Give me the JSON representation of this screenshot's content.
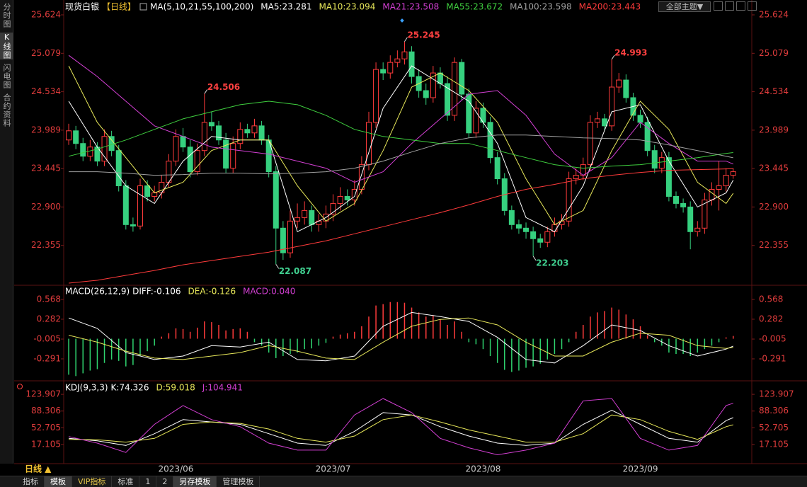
{
  "chart_data": [
    {
      "type": "candlestick",
      "title": "现货白银",
      "period": "【日线】",
      "indicator": "MA(5,10,21,55,100,200)",
      "up_color": "#ff3b3b",
      "down_color": "#36d07f",
      "xlim": [
        -0.7,
        95.6
      ],
      "ylim": [
        21.8,
        25.624
      ],
      "yticks": [
        25.624,
        25.079,
        24.534,
        23.989,
        23.445,
        {
          "value": 22.9,
          "label": "22.900"
        },
        22.355
      ],
      "xticks": [
        {
          "value": 15,
          "label": "2023/06"
        },
        {
          "value": 37,
          "label": "2023/07"
        },
        {
          "value": 58,
          "label": "2023/08"
        },
        {
          "value": 80,
          "label": "2023/09"
        }
      ],
      "open": [
        23.85,
        23.98,
        23.8,
        23.62,
        23.75,
        23.55,
        23.9,
        23.7,
        23.2,
        22.65,
        22.63,
        23.2,
        23.05,
        23.1,
        23.25,
        23.55,
        23.9,
        23.75,
        23.4,
        23.7,
        24.1,
        24.05,
        23.85,
        23.45,
        23.8,
        24.0,
        23.95,
        24.05,
        23.85,
        23.4,
        22.6,
        22.25,
        22.7,
        22.75,
        22.85,
        22.65,
        22.7,
        22.8,
        22.95,
        23.05,
        23.0,
        23.15,
        23.5,
        24.1,
        24.85,
        24.8,
        24.95,
        25.0,
        25.1,
        24.75,
        24.55,
        24.45,
        24.8,
        24.65,
        24.2,
        24.95,
        24.5,
        23.95,
        24.3,
        24.1,
        23.6,
        23.3,
        22.85,
        22.65,
        22.6,
        22.55,
        22.45,
        22.4,
        22.55,
        22.65,
        22.7,
        23.3,
        23.35,
        23.5,
        24.1,
        24.15,
        24.05,
        24.6,
        24.7,
        24.45,
        24.2,
        24.1,
        23.7,
        23.45,
        23.6,
        23.05,
        22.95,
        22.9,
        22.55,
        22.6,
        23.0,
        23.15,
        23.2,
        23.35
      ],
      "high": [
        24.08,
        24.05,
        23.88,
        23.85,
        23.82,
        24.0,
        23.98,
        23.78,
        23.28,
        22.75,
        23.3,
        23.28,
        23.2,
        23.35,
        23.65,
        24.0,
        24.02,
        23.85,
        23.8,
        24.506,
        24.25,
        24.12,
        23.95,
        23.9,
        24.1,
        24.08,
        24.15,
        24.12,
        23.92,
        23.48,
        22.7,
        22.85,
        22.95,
        22.98,
        22.92,
        22.8,
        22.92,
        23.08,
        23.18,
        23.15,
        23.28,
        23.62,
        24.25,
        24.95,
        24.95,
        25.05,
        25.12,
        25.245,
        25.18,
        24.85,
        24.65,
        24.9,
        24.88,
        24.75,
        25.02,
        25.0,
        24.58,
        24.4,
        24.38,
        24.18,
        23.68,
        23.38,
        22.92,
        22.72,
        22.68,
        22.62,
        22.52,
        22.62,
        22.75,
        22.8,
        23.4,
        23.45,
        23.6,
        24.2,
        24.25,
        24.22,
        24.993,
        24.8,
        24.78,
        24.52,
        24.28,
        24.18,
        23.78,
        23.68,
        23.68,
        23.12,
        23.02,
        22.98,
        22.7,
        23.1,
        23.25,
        23.55,
        23.45,
        23.45
      ],
      "low": [
        23.78,
        23.72,
        23.55,
        23.55,
        23.48,
        23.48,
        23.62,
        23.12,
        22.58,
        22.55,
        22.58,
        22.98,
        22.98,
        23.02,
        23.18,
        23.48,
        23.68,
        23.32,
        23.35,
        23.62,
        23.98,
        23.78,
        23.38,
        23.38,
        23.72,
        23.88,
        23.88,
        23.78,
        23.32,
        22.087,
        22.15,
        22.18,
        22.6,
        22.65,
        22.55,
        22.55,
        22.6,
        22.7,
        22.85,
        22.92,
        22.92,
        23.08,
        23.42,
        24.02,
        24.7,
        24.72,
        24.88,
        24.92,
        24.65,
        24.45,
        24.35,
        24.38,
        24.58,
        24.12,
        24.12,
        24.42,
        23.88,
        23.88,
        24.02,
        23.52,
        23.22,
        22.78,
        22.58,
        22.52,
        22.45,
        22.203,
        22.32,
        22.33,
        22.48,
        22.58,
        22.62,
        23.22,
        23.28,
        23.42,
        24.02,
        23.98,
        23.98,
        24.52,
        24.38,
        24.12,
        24.02,
        23.62,
        23.38,
        23.38,
        22.98,
        22.88,
        22.82,
        22.3,
        22.48,
        22.52,
        22.92,
        22.85,
        23.12,
        23.3
      ],
      "close": [
        23.98,
        23.8,
        23.62,
        23.75,
        23.55,
        23.9,
        23.7,
        23.2,
        22.65,
        22.63,
        23.2,
        23.05,
        23.1,
        23.25,
        23.55,
        23.9,
        23.75,
        23.4,
        23.7,
        24.1,
        24.05,
        23.85,
        23.45,
        23.8,
        24.0,
        23.95,
        24.05,
        23.85,
        23.4,
        22.6,
        22.25,
        22.7,
        22.75,
        22.85,
        22.65,
        22.7,
        22.8,
        22.95,
        23.05,
        23.0,
        23.15,
        23.5,
        24.1,
        24.85,
        24.8,
        24.95,
        25.0,
        25.1,
        24.75,
        24.55,
        24.45,
        24.8,
        24.65,
        24.2,
        24.95,
        24.5,
        23.95,
        24.3,
        24.1,
        23.6,
        23.3,
        22.85,
        22.65,
        22.6,
        22.55,
        22.45,
        22.4,
        22.55,
        22.65,
        22.7,
        23.3,
        23.35,
        23.5,
        24.1,
        24.15,
        24.05,
        24.6,
        24.7,
        24.45,
        24.2,
        24.1,
        23.7,
        23.45,
        23.6,
        23.05,
        22.95,
        22.9,
        22.55,
        22.6,
        23.0,
        23.15,
        23.2,
        23.35,
        23.4
      ],
      "line_x": [
        0,
        4,
        8,
        12,
        16,
        20,
        24,
        28,
        32,
        36,
        40,
        44,
        48,
        52,
        56,
        60,
        64,
        68,
        72,
        76,
        80,
        84,
        88,
        92,
        93
      ],
      "series": [
        {
          "name": "MA5:23.281",
          "color": "#ffffff",
          "values": [
            24.4,
            23.75,
            23.2,
            22.95,
            23.55,
            23.9,
            23.85,
            23.85,
            22.55,
            22.75,
            23.05,
            24.3,
            24.9,
            24.65,
            24.4,
            23.8,
            22.75,
            22.55,
            23.2,
            24.25,
            24.35,
            23.55,
            22.9,
            23.1,
            23.281
          ]
        },
        {
          "name": "MA10:23.094",
          "color": "#e8e85a",
          "values": [
            24.9,
            24.1,
            23.6,
            23.1,
            23.25,
            23.7,
            23.85,
            23.85,
            23.2,
            22.7,
            22.95,
            23.7,
            24.6,
            24.8,
            24.55,
            24.1,
            23.3,
            22.65,
            22.85,
            23.7,
            24.4,
            24.0,
            23.25,
            22.95,
            23.094
          ]
        },
        {
          "name": "MA21:23.508",
          "color": "#d23fd2",
          "values": [
            25.05,
            24.75,
            24.4,
            24.05,
            23.9,
            23.75,
            23.7,
            23.65,
            23.55,
            23.45,
            23.25,
            23.4,
            23.8,
            24.15,
            24.5,
            24.55,
            24.2,
            23.65,
            23.35,
            23.6,
            24.1,
            23.8,
            23.55,
            23.55,
            23.508
          ]
        },
        {
          "name": "MA55:23.672",
          "color": "#3fcf3f",
          "values": [
            23.62,
            23.72,
            23.85,
            24.0,
            24.15,
            24.25,
            24.35,
            24.4,
            24.35,
            24.2,
            24.0,
            23.9,
            23.85,
            23.8,
            23.8,
            23.7,
            23.6,
            23.5,
            23.45,
            23.48,
            23.5,
            23.55,
            23.6,
            23.66,
            23.672
          ]
        },
        {
          "name": "MA100:23.598",
          "color": "#a0a0a0",
          "values": [
            23.4,
            23.4,
            23.38,
            23.35,
            23.36,
            23.38,
            23.38,
            23.37,
            23.38,
            23.4,
            23.45,
            23.55,
            23.68,
            23.8,
            23.88,
            23.92,
            23.92,
            23.9,
            23.88,
            23.87,
            23.85,
            23.78,
            23.7,
            23.62,
            23.598
          ]
        },
        {
          "name": "MA200:23.443",
          "color": "#ff3b3b",
          "values": [
            21.82,
            21.86,
            21.93,
            22.0,
            22.08,
            22.14,
            22.2,
            22.26,
            22.34,
            22.42,
            22.52,
            22.62,
            22.72,
            22.82,
            22.93,
            23.05,
            23.15,
            23.22,
            23.3,
            23.35,
            23.39,
            23.42,
            23.43,
            23.44,
            23.443
          ]
        }
      ]
    },
    {
      "type": "macd",
      "title": "MACD(26,12,9)",
      "xlim": [
        -0.7,
        95.6
      ],
      "ylim": [
        -0.598,
        0.752
      ],
      "yticks": [
        0.568,
        0.282,
        -0.005,
        -0.291
      ],
      "histogram": {
        "name": "MACD:0.040",
        "color": "#d23fd2",
        "up_color": "#ff3b3b",
        "down_color": "#2fd46f",
        "values": [
          -0.52,
          -0.54,
          -0.5,
          -0.46,
          -0.44,
          -0.35,
          -0.3,
          -0.32,
          -0.4,
          -0.38,
          -0.25,
          -0.18,
          -0.1,
          0.03,
          0.08,
          0.15,
          0.14,
          0.1,
          0.16,
          0.25,
          0.24,
          0.2,
          0.12,
          0.14,
          0.15,
          0.1,
          -0.05,
          -0.1,
          -0.2,
          -0.28,
          -0.25,
          -0.22,
          -0.2,
          -0.15,
          -0.14,
          -0.1,
          -0.06,
          0.03,
          0.06,
          0.08,
          0.1,
          0.18,
          0.32,
          0.48,
          0.5,
          0.53,
          0.53,
          0.52,
          0.45,
          0.38,
          0.32,
          0.34,
          0.28,
          0.2,
          0.25,
          0.1,
          -0.05,
          -0.08,
          -0.15,
          -0.25,
          -0.35,
          -0.45,
          -0.48,
          -0.46,
          -0.42,
          -0.4,
          -0.36,
          -0.3,
          -0.22,
          -0.15,
          -0.05,
          0.1,
          0.2,
          0.32,
          0.38,
          0.4,
          0.45,
          0.42,
          0.35,
          0.28,
          0.18,
          0.05,
          -0.05,
          -0.1,
          -0.2,
          -0.22,
          -0.22,
          -0.25,
          -0.2,
          -0.15,
          -0.1,
          -0.05,
          0.02,
          0.04
        ]
      },
      "line_x": [
        0,
        4,
        8,
        12,
        16,
        20,
        24,
        28,
        32,
        36,
        40,
        44,
        48,
        52,
        56,
        60,
        64,
        68,
        72,
        76,
        80,
        84,
        88,
        92,
        93
      ],
      "series": [
        {
          "name": "DIFF:-0.106",
          "color": "#ffffff",
          "values": [
            0.3,
            0.15,
            -0.2,
            -0.3,
            -0.25,
            -0.1,
            -0.12,
            -0.05,
            -0.3,
            -0.32,
            -0.25,
            0.18,
            0.38,
            0.32,
            0.25,
            0.02,
            -0.3,
            -0.35,
            -0.1,
            0.2,
            0.12,
            -0.1,
            -0.25,
            -0.15,
            -0.106
          ]
        },
        {
          "name": "DEA:-0.126",
          "color": "#e8e85a",
          "values": [
            0.05,
            -0.05,
            -0.18,
            -0.28,
            -0.3,
            -0.25,
            -0.2,
            -0.1,
            -0.18,
            -0.28,
            -0.3,
            -0.05,
            0.18,
            0.28,
            0.3,
            0.2,
            -0.05,
            -0.25,
            -0.25,
            -0.05,
            0.08,
            0.05,
            -0.1,
            -0.14,
            -0.126
          ]
        }
      ]
    },
    {
      "type": "line",
      "title": "KDJ(9,3,3)",
      "xlim": [
        -0.7,
        95.6
      ],
      "ylim": [
        -23.8,
        149.7
      ],
      "yticks": [
        123.907,
        88.306,
        52.705,
        17.105
      ],
      "line_x": [
        0,
        4,
        8,
        12,
        16,
        20,
        24,
        28,
        32,
        36,
        40,
        44,
        48,
        52,
        56,
        60,
        64,
        68,
        72,
        76,
        80,
        84,
        88,
        92,
        93
      ],
      "series": [
        {
          "name": "K:74.326",
          "color": "#ffffff",
          "values": [
            30,
            25,
            15,
            40,
            70,
            65,
            60,
            40,
            20,
            15,
            45,
            85,
            80,
            55,
            35,
            20,
            15,
            20,
            60,
            90,
            60,
            30,
            22,
            68,
            74.326
          ]
        },
        {
          "name": "D:59.018",
          "color": "#e8e85a",
          "values": [
            28,
            27,
            22,
            30,
            60,
            65,
            62,
            50,
            30,
            22,
            35,
            70,
            80,
            65,
            48,
            35,
            22,
            22,
            40,
            80,
            70,
            45,
            28,
            55,
            59.018
          ]
        },
        {
          "name": "J:104.941",
          "color": "#d23fd2",
          "values": [
            34,
            20,
            0,
            60,
            100,
            70,
            55,
            20,
            5,
            5,
            80,
            115,
            85,
            30,
            10,
            -5,
            5,
            20,
            110,
            115,
            30,
            5,
            15,
            100,
            104.941
          ]
        }
      ]
    }
  ],
  "ui": {
    "sidebar": [
      "分时图",
      "K线图",
      "闪电图",
      "合约资料"
    ],
    "theme_button": "全部主题▼",
    "period_button": "日线 ▲",
    "bottom_tabs": [
      "指标",
      "模板",
      "VIP指标",
      "标准",
      "1",
      "2",
      "另存模板",
      "管理模板"
    ]
  }
}
